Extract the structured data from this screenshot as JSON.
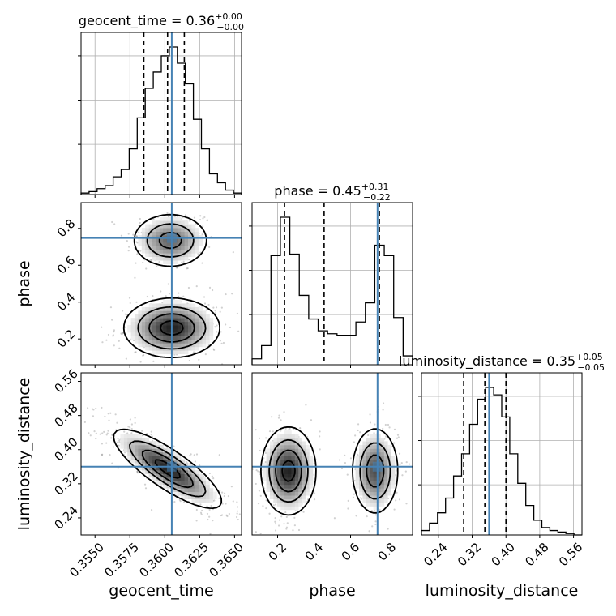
{
  "chart_data": {
    "type": "corner",
    "params": [
      {
        "name": "geocent_time",
        "axis_label": "geocent_time",
        "title": "geocent_time = 0.36",
        "title_sup": "+0.00",
        "title_sub": "−0.00",
        "range": [
          0.354,
          0.3655
        ],
        "ticks": [
          0.355,
          0.3575,
          0.36,
          0.3625,
          0.365
        ],
        "tick_labels": [
          "0.3550",
          "0.3575",
          "0.3600",
          "0.3625",
          "0.3650"
        ],
        "truth": 0.3605,
        "quantiles": [
          0.3585,
          0.3602,
          0.3614
        ],
        "hist": [
          0.01,
          0.02,
          0.04,
          0.06,
          0.12,
          0.17,
          0.31,
          0.52,
          0.72,
          0.83,
          0.94,
          1.0,
          0.89,
          0.75,
          0.51,
          0.31,
          0.14,
          0.08,
          0.03,
          0.01
        ]
      },
      {
        "name": "phase",
        "axis_label": "phase",
        "title": "phase = 0.45",
        "title_sup": "+0.31",
        "title_sub": "−0.22",
        "range": [
          0.06,
          0.94
        ],
        "ticks": [
          0.2,
          0.4,
          0.6,
          0.8
        ],
        "tick_labels": [
          "0.2",
          "0.4",
          "0.6",
          "0.8"
        ],
        "truth": 0.748,
        "quantiles": [
          0.238,
          0.455,
          0.758
        ],
        "hist": [
          0.04,
          0.13,
          0.74,
          1.0,
          0.75,
          0.47,
          0.31,
          0.23,
          0.21,
          0.2,
          0.2,
          0.29,
          0.42,
          0.81,
          0.74,
          0.32,
          0.06
        ]
      },
      {
        "name": "luminosity_distance",
        "axis_label": "luminosity_distance",
        "title": "luminosity_distance = 0.35",
        "title_sup": "+0.05",
        "title_sub": "−0.05",
        "range": [
          0.2,
          0.58
        ],
        "ticks": [
          0.24,
          0.32,
          0.4,
          0.48,
          0.56
        ],
        "tick_labels": [
          "0.24",
          "0.32",
          "0.40",
          "0.48",
          "0.56"
        ],
        "truth": 0.36,
        "quantiles": [
          0.3,
          0.35,
          0.4
        ],
        "hist": [
          0.03,
          0.08,
          0.15,
          0.25,
          0.4,
          0.55,
          0.75,
          0.92,
          1.0,
          0.95,
          0.8,
          0.55,
          0.35,
          0.2,
          0.1,
          0.05,
          0.03,
          0.02,
          0.01,
          0.0
        ]
      }
    ],
    "truth_color": "#4682b4",
    "line_color": "#000000",
    "grid": true,
    "pairs": [
      {
        "x": 0,
        "y": 1,
        "modes": [
          {
            "mx": 0.3604,
            "my": 0.735,
            "sx": 0.0013,
            "sy": 0.07,
            "rho": 0.0,
            "w": 0.42
          },
          {
            "mx": 0.3605,
            "my": 0.26,
            "sx": 0.0016,
            "sy": 0.075,
            "rho": 0.0,
            "w": 0.58
          }
        ],
        "levels": [
          0.88,
          0.6,
          0.32,
          0.1
        ]
      },
      {
        "x": 0,
        "y": 2,
        "modes": [
          {
            "mx": 0.3602,
            "my": 0.355,
            "sx": 0.0018,
            "sy": 0.043,
            "rho": -0.82,
            "w": 1.0
          }
        ],
        "levels": [
          0.88,
          0.6,
          0.32,
          0.1
        ]
      },
      {
        "x": 1,
        "y": 2,
        "modes": [
          {
            "mx": 0.26,
            "my": 0.35,
            "sx": 0.07,
            "sy": 0.048,
            "rho": 0.0,
            "w": 0.55
          },
          {
            "mx": 0.735,
            "my": 0.35,
            "sx": 0.06,
            "sy": 0.048,
            "rho": 0.0,
            "w": 0.45
          }
        ],
        "levels": [
          0.88,
          0.6,
          0.32,
          0.1
        ]
      }
    ]
  }
}
